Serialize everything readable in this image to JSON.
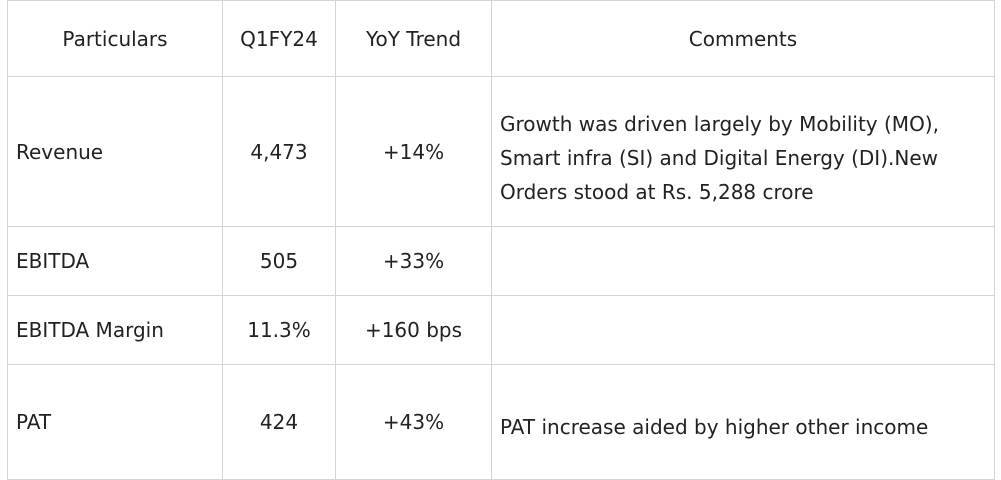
{
  "table": {
    "headers": {
      "particulars": "Particulars",
      "period": "Q1FY24",
      "trend": "YoY Trend",
      "comments": "Comments"
    },
    "rows": [
      {
        "particular": "Revenue",
        "value": "4,473",
        "trend": "+14%",
        "comment": "Growth was driven largely by Mobility (MO), Smart infra (SI) and Digital Energy (DI).New Orders stood at Rs. 5,288 crore"
      },
      {
        "particular": "EBITDA",
        "value": "505",
        "trend": "+33%",
        "comment": ""
      },
      {
        "particular": "EBITDA Margin",
        "value": "11.3%",
        "trend": "+160 bps",
        "comment": ""
      },
      {
        "particular": "PAT",
        "value": "424",
        "trend": "+43%",
        "comment": "PAT increase aided by higher other income"
      }
    ]
  }
}
